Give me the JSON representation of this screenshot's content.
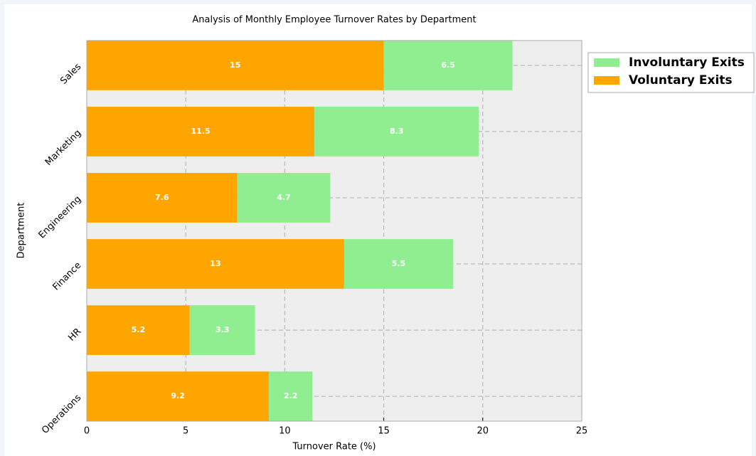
{
  "chart_data": {
    "type": "stacked-barh",
    "title": "Analysis of Monthly Employee Turnover Rates by Department",
    "xlabel": "Turnover Rate (%)",
    "ylabel": "Department",
    "categories": [
      "Sales",
      "Marketing",
      "Engineering",
      "Finance",
      "HR",
      "Operations"
    ],
    "series": [
      {
        "name": "Voluntary Exits",
        "color": "#ffa500",
        "values": [
          15,
          11.5,
          7.6,
          13,
          5.2,
          9.2
        ]
      },
      {
        "name": "Involuntary Exits",
        "color": "#90ee90",
        "values": [
          6.5,
          8.3,
          4.7,
          5.5,
          3.3,
          2.2
        ]
      }
    ],
    "xlim": [
      0,
      25
    ],
    "xticks": [
      0,
      5,
      10,
      15,
      20,
      25
    ],
    "grid": true,
    "legend": "upper right outside"
  }
}
